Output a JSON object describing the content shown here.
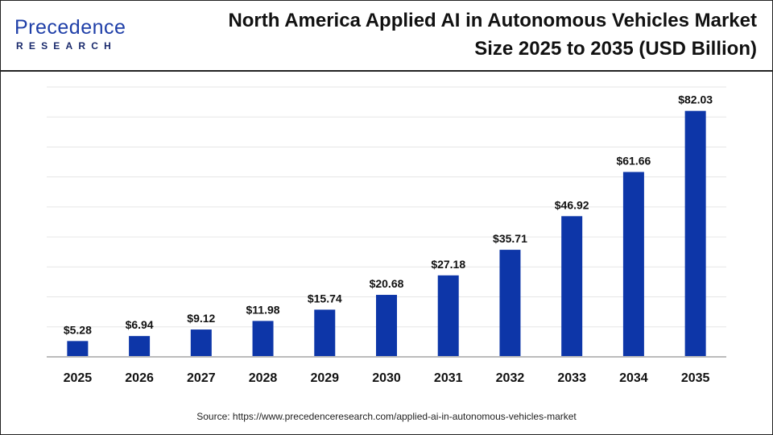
{
  "logo": {
    "main": "Precedence",
    "sub": "RESEARCH"
  },
  "title_line1": "North America Applied AI in Autonomous Vehicles Market",
  "title_line2": "Size 2025 to 2035 (USD Billion)",
  "source": "Source: https://www.precedenceresearch.com/applied-ai-in-autonomous-vehicles-market",
  "chart_data": {
    "type": "bar",
    "title": "North America Applied AI in Autonomous Vehicles Market Size 2025 to 2035 (USD Billion)",
    "categories": [
      "2025",
      "2026",
      "2027",
      "2028",
      "2029",
      "2030",
      "2031",
      "2032",
      "2033",
      "2034",
      "2035"
    ],
    "values": [
      5.28,
      6.94,
      9.12,
      11.98,
      15.74,
      20.68,
      27.18,
      35.71,
      46.92,
      61.66,
      82.03
    ],
    "data_labels": [
      "$5.28",
      "$6.94",
      "$9.12",
      "$11.98",
      "$15.74",
      "$20.68",
      "$27.18",
      "$35.71",
      "$46.92",
      "$61.66",
      "$82.03"
    ],
    "ylim": [
      0,
      90
    ],
    "grid": true,
    "bar_color": "#0d36a8"
  }
}
